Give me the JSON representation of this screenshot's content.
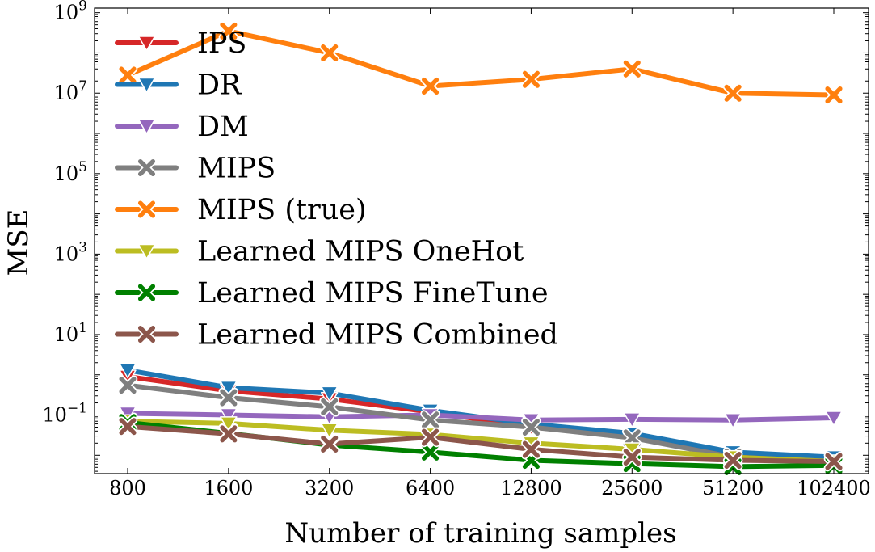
{
  "chart_data": {
    "type": "line",
    "xlabel": "Number of training samples",
    "ylabel": "MSE",
    "yscale": "log",
    "ylim": [
      0.0035,
      1300000000.0
    ],
    "yticks": [
      {
        "value": 0.1,
        "base": "10",
        "exp": "−1"
      },
      {
        "value": 10,
        "base": "10",
        "exp": "1"
      },
      {
        "value": 1000,
        "base": "10",
        "exp": "3"
      },
      {
        "value": 100000,
        "base": "10",
        "exp": "5"
      },
      {
        "value": 10000000,
        "base": "10",
        "exp": "7"
      },
      {
        "value": 1000000000,
        "base": "10",
        "exp": "9"
      }
    ],
    "categories": [
      "800",
      "1600",
      "3200",
      "6400",
      "12800",
      "25600",
      "51200",
      "102400"
    ],
    "legend_placement": "upper-left",
    "grid": false,
    "series": [
      {
        "name": "IPS",
        "color": "#d62728",
        "marker": "triangle-down",
        "values": [
          0.9,
          0.4,
          0.25,
          0.12,
          0.05,
          0.03,
          0.01,
          0.008
        ]
      },
      {
        "name": "DR",
        "color": "#1f77b4",
        "marker": "triangle-down",
        "values": [
          1.3,
          0.48,
          0.35,
          0.13,
          0.06,
          0.035,
          0.012,
          0.009
        ]
      },
      {
        "name": "DM",
        "color": "#9467bd",
        "marker": "triangle-down",
        "values": [
          0.11,
          0.1,
          0.09,
          0.1,
          0.075,
          0.078,
          0.075,
          0.085
        ]
      },
      {
        "name": "MIPS",
        "color": "#7f7f7f",
        "marker": "x",
        "values": [
          0.55,
          0.27,
          0.16,
          0.075,
          0.05,
          0.027,
          0.009,
          0.007
        ]
      },
      {
        "name": "MIPS (true)",
        "color": "#ff7f0e",
        "marker": "x",
        "values": [
          28000000,
          350000000,
          100000000,
          15000000,
          22000000,
          40000000,
          10000000,
          9000000
        ]
      },
      {
        "name": "Learned MIPS OneHot",
        "color": "#bcbd22",
        "marker": "triangle-down",
        "values": [
          0.07,
          0.062,
          0.042,
          0.033,
          0.02,
          0.014,
          0.009,
          0.007
        ]
      },
      {
        "name": "Learned MIPS FineTune",
        "color": "#008000",
        "marker": "x",
        "values": [
          0.065,
          0.035,
          0.018,
          0.012,
          0.0075,
          0.0062,
          0.0052,
          0.0056
        ]
      },
      {
        "name": "Learned MIPS Combined",
        "color": "#8c564b",
        "marker": "x",
        "values": [
          0.052,
          0.034,
          0.019,
          0.028,
          0.014,
          0.009,
          0.0075,
          0.007
        ]
      }
    ]
  }
}
